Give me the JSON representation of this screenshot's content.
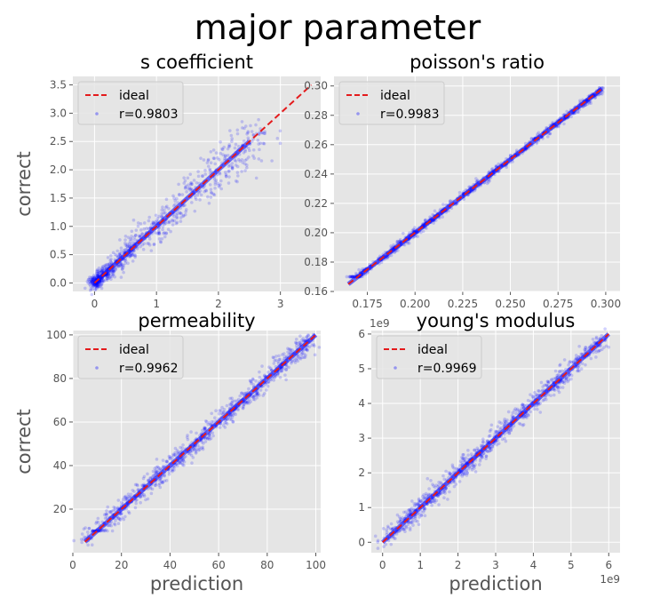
{
  "figure": {
    "title": "major parameter",
    "colors": {
      "background": "#e5e5e5",
      "grid": "#ffffff",
      "ideal": "#e41a1c",
      "points": "#0000ff",
      "fit": "#cc0000"
    }
  },
  "chart_data": [
    {
      "type": "scatter",
      "title": "s coefficient",
      "xlabel": "",
      "ylabel": "correct",
      "xlim": [
        -0.35,
        3.65
      ],
      "ylim": [
        -0.15,
        3.65
      ],
      "xticks": [
        0,
        1,
        2,
        3
      ],
      "yticks": [
        0.0,
        0.5,
        1.0,
        1.5,
        2.0,
        2.5,
        3.0,
        3.5
      ],
      "ytick_labels": [
        "0.0",
        "0.5",
        "1.0",
        "1.5",
        "2.0",
        "2.5",
        "3.0",
        "3.5"
      ],
      "offset_text": "",
      "legend": {
        "location": "upper-left",
        "entries": [
          "ideal",
          "r=0.9803"
        ]
      },
      "ideal_line": {
        "x": [
          0,
          3.5
        ],
        "y": [
          0,
          3.5
        ],
        "style": "dashed"
      },
      "r": 0.9803,
      "points_range": [
        0,
        2.7
      ]
    },
    {
      "type": "scatter",
      "title": "poisson's ratio",
      "xlabel": "",
      "ylabel": "",
      "xlim": [
        0.1575,
        0.3075
      ],
      "ylim": [
        0.16,
        0.3065
      ],
      "xticks": [
        0.175,
        0.2,
        0.225,
        0.25,
        0.275,
        0.3
      ],
      "xtick_labels": [
        "0.175",
        "0.200",
        "0.225",
        "0.250",
        "0.275",
        "0.300"
      ],
      "yticks": [
        0.16,
        0.18,
        0.2,
        0.22,
        0.24,
        0.26,
        0.28,
        0.3
      ],
      "ytick_labels": [
        "0.16",
        "0.18",
        "0.20",
        "0.22",
        "0.24",
        "0.26",
        "0.28",
        "0.30"
      ],
      "offset_text": "",
      "legend": {
        "location": "upper-left",
        "entries": [
          "ideal",
          "r=0.9983"
        ]
      },
      "ideal_line": {
        "x": [
          0.165,
          0.298
        ],
        "y": [
          0.165,
          0.298
        ],
        "style": "dashed"
      },
      "r": 0.9983,
      "points_range": [
        0.166,
        0.298
      ]
    },
    {
      "type": "scatter",
      "title": "permeability",
      "xlabel": "prediction",
      "ylabel": "correct",
      "xlim": [
        0,
        102
      ],
      "ylim": [
        0,
        102
      ],
      "xticks": [
        0,
        20,
        40,
        60,
        80,
        100
      ],
      "yticks": [
        20,
        40,
        60,
        80,
        100
      ],
      "offset_text": "",
      "legend": {
        "location": "upper-left",
        "entries": [
          "ideal",
          "r=0.9962"
        ]
      },
      "ideal_line": {
        "x": [
          5,
          100
        ],
        "y": [
          5,
          100
        ],
        "style": "dashed"
      },
      "r": 0.9962,
      "points_range": [
        5,
        99
      ]
    },
    {
      "type": "scatter",
      "title": "young's modulus",
      "xlabel": "prediction",
      "ylabel": "",
      "xlim": [
        -300000000.0,
        6300000000.0
      ],
      "ylim": [
        -300000000.0,
        6100000000.0
      ],
      "xticks": [
        0,
        1000000000.0,
        2000000000.0,
        3000000000.0,
        4000000000.0,
        5000000000.0,
        6000000000.0
      ],
      "xtick_labels": [
        "0",
        "1",
        "2",
        "3",
        "4",
        "5",
        "6"
      ],
      "yticks": [
        0,
        1000000000.0,
        2000000000.0,
        3000000000.0,
        4000000000.0,
        5000000000.0,
        6000000000.0
      ],
      "ytick_labels": [
        "0",
        "1",
        "2",
        "3",
        "4",
        "5",
        "6"
      ],
      "offset_text": "1e9",
      "legend": {
        "location": "upper-left",
        "entries": [
          "ideal",
          "r=0.9969"
        ]
      },
      "ideal_line": {
        "x": [
          0,
          6000000000.0
        ],
        "y": [
          0,
          6000000000.0
        ],
        "style": "dashed"
      },
      "r": 0.9969,
      "points_range": [
        0,
        5900000000.0
      ]
    }
  ]
}
